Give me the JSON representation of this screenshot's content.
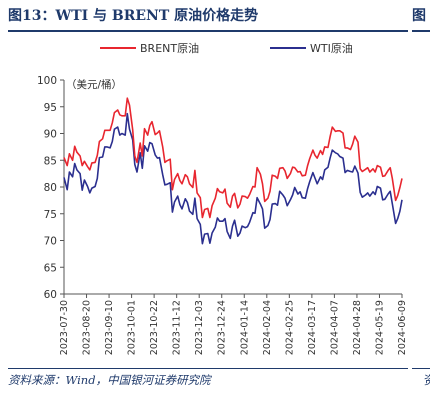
{
  "header": {
    "title": "图13：WTI 与 BRENT 原油价格走势",
    "next_title_stub": "图"
  },
  "footer": {
    "source": "资料来源：Wind，中国银河证券研究院",
    "next_source_stub": "资"
  },
  "chart_data": {
    "type": "line",
    "ylabel": "（美元/桶）",
    "ylim": [
      60,
      100
    ],
    "yticks": [
      60,
      65,
      70,
      75,
      80,
      85,
      90,
      95,
      100
    ],
    "xlim": [
      "2023-07-30",
      "2024-06-09"
    ],
    "xticks": [
      "2023-07-30",
      "2023-08-20",
      "2023-09-10",
      "2023-10-01",
      "2023-10-22",
      "2023-11-12",
      "2023-12-03",
      "2023-12-24",
      "2024-01-14",
      "2024-02-04",
      "2024-02-25",
      "2024-03-17",
      "2024-04-07",
      "2024-04-28",
      "2024-05-19",
      "2024-06-09"
    ],
    "legend_position": "top",
    "grid": false,
    "series": [
      {
        "name": "BRENT原油",
        "color": "#e8262f",
        "points": [
          [
            "2023-07-30",
            85.5
          ],
          [
            "2023-08-02",
            84.0
          ],
          [
            "2023-08-04",
            86.2
          ],
          [
            "2023-08-07",
            85.0
          ],
          [
            "2023-08-09",
            87.6
          ],
          [
            "2023-08-11",
            86.5
          ],
          [
            "2023-08-14",
            85.8
          ],
          [
            "2023-08-16",
            84.0
          ],
          [
            "2023-08-18",
            84.8
          ],
          [
            "2023-08-21",
            83.8
          ],
          [
            "2023-08-23",
            83.2
          ],
          [
            "2023-08-25",
            84.5
          ],
          [
            "2023-08-28",
            84.6
          ],
          [
            "2023-08-30",
            85.9
          ],
          [
            "2023-09-01",
            88.5
          ],
          [
            "2023-09-04",
            89.0
          ],
          [
            "2023-09-06",
            90.6
          ],
          [
            "2023-09-08",
            90.6
          ],
          [
            "2023-09-11",
            90.6
          ],
          [
            "2023-09-13",
            92.0
          ],
          [
            "2023-09-15",
            93.9
          ],
          [
            "2023-09-18",
            94.4
          ],
          [
            "2023-09-20",
            93.5
          ],
          [
            "2023-09-22",
            93.3
          ],
          [
            "2023-09-25",
            93.3
          ],
          [
            "2023-09-27",
            96.6
          ],
          [
            "2023-09-29",
            95.3
          ],
          [
            "2023-10-02",
            90.7
          ],
          [
            "2023-10-04",
            85.8
          ],
          [
            "2023-10-06",
            84.6
          ],
          [
            "2023-10-09",
            88.2
          ],
          [
            "2023-10-11",
            85.8
          ],
          [
            "2023-10-13",
            90.9
          ],
          [
            "2023-10-16",
            89.7
          ],
          [
            "2023-10-18",
            91.5
          ],
          [
            "2023-10-20",
            92.2
          ],
          [
            "2023-10-23",
            89.8
          ],
          [
            "2023-10-25",
            90.1
          ],
          [
            "2023-10-27",
            90.5
          ],
          [
            "2023-10-30",
            87.5
          ],
          [
            "2023-11-01",
            84.6
          ],
          [
            "2023-11-03",
            84.9
          ],
          [
            "2023-11-06",
            85.2
          ],
          [
            "2023-11-08",
            79.5
          ],
          [
            "2023-11-10",
            81.4
          ],
          [
            "2023-11-13",
            82.5
          ],
          [
            "2023-11-15",
            81.2
          ],
          [
            "2023-11-17",
            80.6
          ],
          [
            "2023-11-20",
            82.3
          ],
          [
            "2023-11-22",
            81.9
          ],
          [
            "2023-11-24",
            80.6
          ],
          [
            "2023-11-27",
            79.9
          ],
          [
            "2023-11-29",
            83.1
          ],
          [
            "2023-12-01",
            78.9
          ],
          [
            "2023-12-04",
            78.0
          ],
          [
            "2023-12-06",
            74.3
          ],
          [
            "2023-12-08",
            75.8
          ],
          [
            "2023-12-11",
            76.0
          ],
          [
            "2023-12-13",
            74.3
          ],
          [
            "2023-12-15",
            76.5
          ],
          [
            "2023-12-18",
            77.9
          ],
          [
            "2023-12-20",
            79.7
          ],
          [
            "2023-12-22",
            79.1
          ],
          [
            "2023-12-25",
            78.9
          ],
          [
            "2023-12-27",
            79.6
          ],
          [
            "2023-12-29",
            77.0
          ],
          [
            "2024-01-01",
            76.2
          ],
          [
            "2024-01-03",
            78.3
          ],
          [
            "2024-01-05",
            78.8
          ],
          [
            "2024-01-08",
            76.1
          ],
          [
            "2024-01-10",
            76.8
          ],
          [
            "2024-01-12",
            78.3
          ],
          [
            "2024-01-15",
            78.2
          ],
          [
            "2024-01-17",
            77.9
          ],
          [
            "2024-01-19",
            78.6
          ],
          [
            "2024-01-22",
            80.1
          ],
          [
            "2024-01-24",
            80.0
          ],
          [
            "2024-01-26",
            83.6
          ],
          [
            "2024-01-29",
            82.4
          ],
          [
            "2024-01-31",
            80.6
          ],
          [
            "2024-02-02",
            77.3
          ],
          [
            "2024-02-05",
            77.9
          ],
          [
            "2024-02-07",
            79.2
          ],
          [
            "2024-02-09",
            82.2
          ],
          [
            "2024-02-12",
            82.0
          ],
          [
            "2024-02-14",
            81.6
          ],
          [
            "2024-02-16",
            83.5
          ],
          [
            "2024-02-19",
            83.6
          ],
          [
            "2024-02-21",
            83.0
          ],
          [
            "2024-02-23",
            81.6
          ],
          [
            "2024-02-26",
            82.5
          ],
          [
            "2024-02-28",
            83.7
          ],
          [
            "2024-03-01",
            83.6
          ],
          [
            "2024-03-04",
            82.8
          ],
          [
            "2024-03-06",
            82.9
          ],
          [
            "2024-03-08",
            82.1
          ],
          [
            "2024-03-11",
            82.2
          ],
          [
            "2024-03-13",
            84.0
          ],
          [
            "2024-03-15",
            85.3
          ],
          [
            "2024-03-18",
            86.9
          ],
          [
            "2024-03-20",
            85.9
          ],
          [
            "2024-03-22",
            85.4
          ],
          [
            "2024-03-25",
            86.8
          ],
          [
            "2024-03-27",
            86.1
          ],
          [
            "2024-03-29",
            87.5
          ],
          [
            "2024-04-01",
            87.4
          ],
          [
            "2024-04-03",
            89.4
          ],
          [
            "2024-04-05",
            91.2
          ],
          [
            "2024-04-08",
            90.4
          ],
          [
            "2024-04-10",
            90.5
          ],
          [
            "2024-04-12",
            90.5
          ],
          [
            "2024-04-15",
            90.1
          ],
          [
            "2024-04-17",
            87.3
          ],
          [
            "2024-04-19",
            87.3
          ],
          [
            "2024-04-22",
            87.0
          ],
          [
            "2024-04-24",
            88.0
          ],
          [
            "2024-04-26",
            89.5
          ],
          [
            "2024-04-29",
            88.4
          ],
          [
            "2024-05-01",
            83.4
          ],
          [
            "2024-05-03",
            82.9
          ],
          [
            "2024-05-06",
            83.3
          ],
          [
            "2024-05-08",
            83.6
          ],
          [
            "2024-05-10",
            82.8
          ],
          [
            "2024-05-13",
            83.4
          ],
          [
            "2024-05-15",
            82.8
          ],
          [
            "2024-05-17",
            84.0
          ],
          [
            "2024-05-20",
            83.7
          ],
          [
            "2024-05-22",
            82.0
          ],
          [
            "2024-05-24",
            82.1
          ],
          [
            "2024-05-27",
            83.1
          ],
          [
            "2024-05-29",
            83.6
          ],
          [
            "2024-05-31",
            81.6
          ],
          [
            "2024-06-03",
            77.5
          ],
          [
            "2024-06-05",
            78.4
          ],
          [
            "2024-06-07",
            79.9
          ],
          [
            "2024-06-09",
            81.6
          ]
        ]
      },
      {
        "name": "WTI原油",
        "color": "#2b2f8f",
        "points": [
          [
            "2023-07-30",
            81.8
          ],
          [
            "2023-08-02",
            79.5
          ],
          [
            "2023-08-04",
            82.8
          ],
          [
            "2023-08-07",
            81.9
          ],
          [
            "2023-08-09",
            84.4
          ],
          [
            "2023-08-11",
            83.2
          ],
          [
            "2023-08-14",
            82.5
          ],
          [
            "2023-08-16",
            79.4
          ],
          [
            "2023-08-18",
            81.3
          ],
          [
            "2023-08-21",
            80.1
          ],
          [
            "2023-08-23",
            78.9
          ],
          [
            "2023-08-25",
            79.8
          ],
          [
            "2023-08-28",
            80.1
          ],
          [
            "2023-08-30",
            81.6
          ],
          [
            "2023-09-01",
            85.5
          ],
          [
            "2023-09-04",
            85.6
          ],
          [
            "2023-09-06",
            87.5
          ],
          [
            "2023-09-08",
            87.5
          ],
          [
            "2023-09-11",
            87.3
          ],
          [
            "2023-09-13",
            88.5
          ],
          [
            "2023-09-15",
            90.8
          ],
          [
            "2023-09-18",
            91.2
          ],
          [
            "2023-09-20",
            89.7
          ],
          [
            "2023-09-22",
            90.0
          ],
          [
            "2023-09-25",
            89.7
          ],
          [
            "2023-09-27",
            93.7
          ],
          [
            "2023-09-29",
            90.8
          ],
          [
            "2023-10-02",
            88.8
          ],
          [
            "2023-10-04",
            84.2
          ],
          [
            "2023-10-06",
            82.8
          ],
          [
            "2023-10-09",
            86.4
          ],
          [
            "2023-10-11",
            83.5
          ],
          [
            "2023-10-13",
            87.7
          ],
          [
            "2023-10-16",
            86.7
          ],
          [
            "2023-10-18",
            88.3
          ],
          [
            "2023-10-20",
            88.1
          ],
          [
            "2023-10-23",
            86.0
          ],
          [
            "2023-10-25",
            85.4
          ],
          [
            "2023-10-27",
            85.5
          ],
          [
            "2023-10-30",
            82.3
          ],
          [
            "2023-11-01",
            80.4
          ],
          [
            "2023-11-03",
            80.5
          ],
          [
            "2023-11-06",
            80.8
          ],
          [
            "2023-11-08",
            75.3
          ],
          [
            "2023-11-10",
            77.2
          ],
          [
            "2023-11-13",
            78.3
          ],
          [
            "2023-11-15",
            76.7
          ],
          [
            "2023-11-17",
            75.9
          ],
          [
            "2023-11-20",
            77.8
          ],
          [
            "2023-11-22",
            77.1
          ],
          [
            "2023-11-24",
            75.5
          ],
          [
            "2023-11-27",
            74.9
          ],
          [
            "2023-11-29",
            77.9
          ],
          [
            "2023-12-01",
            74.1
          ],
          [
            "2023-12-04",
            73.0
          ],
          [
            "2023-12-06",
            69.4
          ],
          [
            "2023-12-08",
            71.2
          ],
          [
            "2023-12-11",
            71.3
          ],
          [
            "2023-12-13",
            69.5
          ],
          [
            "2023-12-15",
            71.4
          ],
          [
            "2023-12-18",
            72.5
          ],
          [
            "2023-12-20",
            74.2
          ],
          [
            "2023-12-22",
            73.6
          ],
          [
            "2023-12-25",
            73.6
          ],
          [
            "2023-12-27",
            74.1
          ],
          [
            "2023-12-29",
            71.7
          ],
          [
            "2024-01-01",
            70.4
          ],
          [
            "2024-01-03",
            72.7
          ],
          [
            "2024-01-05",
            73.8
          ],
          [
            "2024-01-08",
            70.8
          ],
          [
            "2024-01-10",
            71.4
          ],
          [
            "2024-01-12",
            72.7
          ],
          [
            "2024-01-15",
            72.4
          ],
          [
            "2024-01-17",
            72.6
          ],
          [
            "2024-01-19",
            73.4
          ],
          [
            "2024-01-22",
            75.2
          ],
          [
            "2024-01-24",
            75.1
          ],
          [
            "2024-01-26",
            78.0
          ],
          [
            "2024-01-29",
            76.8
          ],
          [
            "2024-01-31",
            75.9
          ],
          [
            "2024-02-02",
            72.3
          ],
          [
            "2024-02-05",
            72.8
          ],
          [
            "2024-02-07",
            73.9
          ],
          [
            "2024-02-09",
            76.8
          ],
          [
            "2024-02-12",
            76.9
          ],
          [
            "2024-02-14",
            76.6
          ],
          [
            "2024-02-16",
            79.2
          ],
          [
            "2024-02-19",
            78.5
          ],
          [
            "2024-02-21",
            77.9
          ],
          [
            "2024-02-23",
            76.5
          ],
          [
            "2024-02-26",
            77.6
          ],
          [
            "2024-02-28",
            78.5
          ],
          [
            "2024-03-01",
            79.9
          ],
          [
            "2024-03-04",
            78.7
          ],
          [
            "2024-03-06",
            79.1
          ],
          [
            "2024-03-08",
            78.0
          ],
          [
            "2024-03-11",
            77.9
          ],
          [
            "2024-03-13",
            79.7
          ],
          [
            "2024-03-15",
            81.0
          ],
          [
            "2024-03-18",
            82.7
          ],
          [
            "2024-03-20",
            81.6
          ],
          [
            "2024-03-22",
            80.6
          ],
          [
            "2024-03-25",
            81.9
          ],
          [
            "2024-03-27",
            81.4
          ],
          [
            "2024-03-29",
            83.2
          ],
          [
            "2024-04-01",
            83.7
          ],
          [
            "2024-04-03",
            85.4
          ],
          [
            "2024-04-05",
            86.9
          ],
          [
            "2024-04-08",
            86.4
          ],
          [
            "2024-04-10",
            86.2
          ],
          [
            "2024-04-12",
            85.7
          ],
          [
            "2024-04-15",
            85.4
          ],
          [
            "2024-04-17",
            82.7
          ],
          [
            "2024-04-19",
            83.1
          ],
          [
            "2024-04-22",
            82.9
          ],
          [
            "2024-04-24",
            82.8
          ],
          [
            "2024-04-26",
            83.9
          ],
          [
            "2024-04-29",
            82.6
          ],
          [
            "2024-05-01",
            79.0
          ],
          [
            "2024-05-03",
            78.1
          ],
          [
            "2024-05-06",
            78.5
          ],
          [
            "2024-05-08",
            78.9
          ],
          [
            "2024-05-10",
            78.3
          ],
          [
            "2024-05-13",
            79.1
          ],
          [
            "2024-05-15",
            78.6
          ],
          [
            "2024-05-17",
            80.1
          ],
          [
            "2024-05-20",
            79.8
          ],
          [
            "2024-05-22",
            77.6
          ],
          [
            "2024-05-24",
            77.7
          ],
          [
            "2024-05-27",
            78.7
          ],
          [
            "2024-05-29",
            79.2
          ],
          [
            "2024-05-31",
            76.9
          ],
          [
            "2024-06-03",
            73.2
          ],
          [
            "2024-06-05",
            74.1
          ],
          [
            "2024-06-07",
            75.5
          ],
          [
            "2024-06-09",
            77.6
          ]
        ]
      }
    ]
  }
}
